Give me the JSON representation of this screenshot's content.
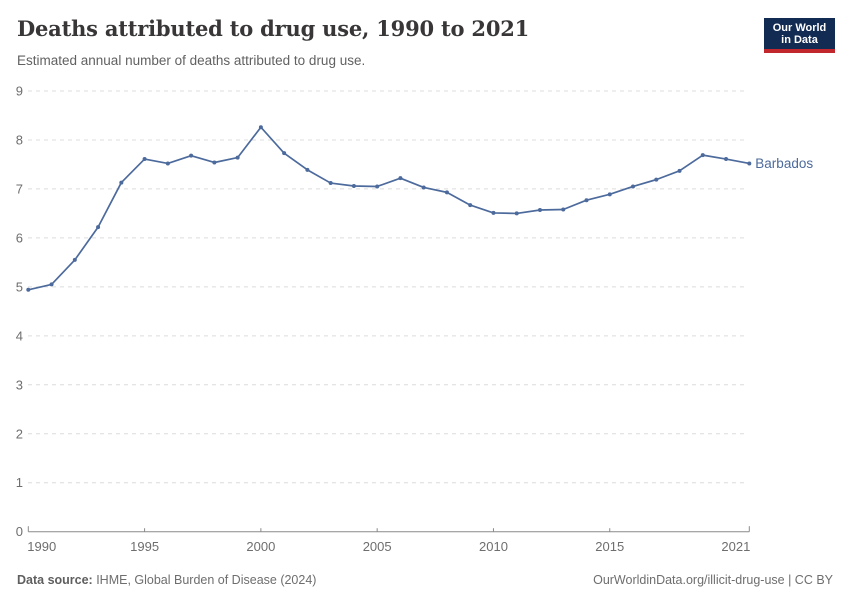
{
  "header": {
    "title": "Deaths attributed to drug use, 1990 to 2021",
    "subtitle": "Estimated annual number of deaths attributed to drug use."
  },
  "logo": {
    "line1": "Our World",
    "line2": "in Data",
    "bg_color": "#122B52",
    "stripe_color": "#C1272D"
  },
  "chart_data": {
    "type": "line",
    "title": "Deaths attributed to drug use, 1990 to 2021",
    "subtitle": "Estimated annual number of deaths attributed to drug use.",
    "x": [
      1990,
      1991,
      1992,
      1993,
      1994,
      1995,
      1996,
      1997,
      1998,
      1999,
      2000,
      2001,
      2002,
      2003,
      2004,
      2005,
      2006,
      2007,
      2008,
      2009,
      2010,
      2011,
      2012,
      2013,
      2014,
      2015,
      2016,
      2017,
      2018,
      2019,
      2020,
      2021
    ],
    "series": [
      {
        "name": "Barbados",
        "color": "#4C6A9C",
        "values": [
          4.94,
          5.05,
          5.55,
          6.22,
          7.13,
          7.61,
          7.52,
          7.68,
          7.54,
          7.64,
          8.26,
          7.73,
          7.39,
          7.12,
          7.06,
          7.05,
          7.22,
          7.03,
          6.93,
          6.67,
          6.51,
          6.5,
          6.57,
          6.58,
          6.77,
          6.89,
          7.05,
          7.19,
          7.37,
          7.69,
          7.61,
          7.52
        ]
      }
    ],
    "ylim": [
      0,
      9
    ],
    "yticks": [
      0,
      1,
      2,
      3,
      4,
      5,
      6,
      7,
      8,
      9
    ],
    "xticks": [
      1990,
      1995,
      2000,
      2005,
      2010,
      2015,
      2021
    ],
    "xlabel": "",
    "ylabel": "",
    "grid": "horizontal-dashed",
    "legend": "end-of-line-label",
    "colors": {
      "line": "#4C6A9C",
      "grid": "#dcdcdc",
      "axis": "#8a8a8a",
      "tick_text": "#6e6e6e"
    }
  },
  "footer": {
    "source_prefix": "Data source:",
    "source_text": " IHME, Global Burden of Disease (2024)",
    "link_text": "OurWorldinData.org/illicit-drug-use | CC BY"
  }
}
